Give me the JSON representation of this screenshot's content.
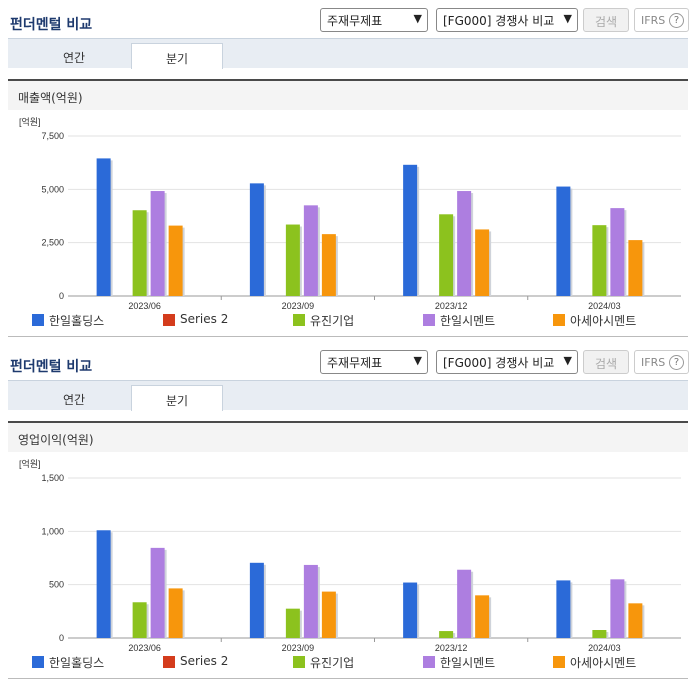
{
  "panels": [
    {
      "title": "펀더멘털 비교",
      "select1": "주재무제표",
      "select2": "[FG000] 경쟁사 비교",
      "search_label": "검색",
      "ifrs_label": "IFRS",
      "help_glyph": "?",
      "tabs": [
        "연간",
        "분기"
      ],
      "metric": "매출액(억원)"
    },
    {
      "title": "펀더멘털 비교",
      "select1": "주재무제표",
      "select2": "[FG000] 경쟁사 비교",
      "search_label": "검색",
      "ifrs_label": "IFRS",
      "help_glyph": "?",
      "tabs": [
        "연간",
        "분기"
      ],
      "metric": "영업이익(억원)"
    }
  ],
  "legend": [
    {
      "name": "한일홀딩스",
      "color": "#2b6ad8"
    },
    {
      "name": "Series 2",
      "color": "#d43c1c"
    },
    {
      "name": "유진기업",
      "color": "#8cc21e"
    },
    {
      "name": "한일시멘트",
      "color": "#ad7ee0"
    },
    {
      "name": "아세아시멘트",
      "color": "#f7960c"
    }
  ],
  "chart_data": [
    {
      "type": "bar",
      "unit": "[억원]",
      "categories": [
        "2023/06",
        "2023/09",
        "2023/12",
        "2024/03"
      ],
      "ylim": [
        0,
        7500
      ],
      "yticks": [
        0,
        2500,
        5000,
        7500
      ],
      "ytick_labels": [
        "0",
        "2,500",
        "5,000",
        "7,500"
      ],
      "series": [
        {
          "name": "한일홀딩스",
          "color": "#2b6ad8",
          "values": [
            6450,
            5280,
            6150,
            5130
          ]
        },
        {
          "name": "유진기업",
          "color": "#8cc21e",
          "values": [
            4020,
            3350,
            3830,
            3320
          ]
        },
        {
          "name": "한일시멘트",
          "color": "#ad7ee0",
          "values": [
            4920,
            4250,
            4920,
            4120
          ]
        },
        {
          "name": "아세아시멘트",
          "color": "#f7960c",
          "values": [
            3300,
            2900,
            3120,
            2620
          ]
        }
      ]
    },
    {
      "type": "bar",
      "unit": "[억원]",
      "categories": [
        "2023/06",
        "2023/09",
        "2023/12",
        "2024/03"
      ],
      "ylim": [
        0,
        1500
      ],
      "yticks": [
        0,
        500,
        1000,
        1500
      ],
      "ytick_labels": [
        "0",
        "500",
        "1,000",
        "1,500"
      ],
      "series": [
        {
          "name": "한일홀딩스",
          "color": "#2b6ad8",
          "values": [
            1010,
            705,
            520,
            540
          ]
        },
        {
          "name": "유진기업",
          "color": "#8cc21e",
          "values": [
            335,
            275,
            65,
            75
          ]
        },
        {
          "name": "한일시멘트",
          "color": "#ad7ee0",
          "values": [
            845,
            685,
            640,
            550
          ]
        },
        {
          "name": "아세아시멘트",
          "color": "#f7960c",
          "values": [
            465,
            435,
            400,
            325
          ]
        }
      ]
    }
  ]
}
